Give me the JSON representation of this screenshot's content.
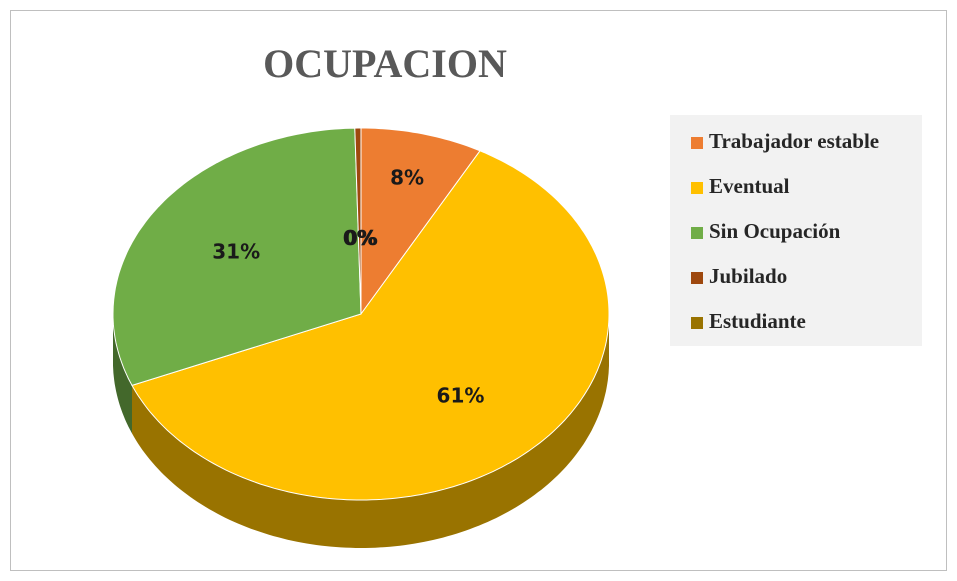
{
  "chart_data": {
    "type": "pie3d",
    "title": "OCUPACION",
    "categories": [
      "Trabajador estable",
      "Eventual",
      "Sin Ocupación",
      "Jubilado",
      "Estudiante"
    ],
    "values": [
      8,
      61,
      31,
      0.4,
      0
    ],
    "value_labels": [
      "8%",
      "61%",
      "31%",
      "0%",
      "0%"
    ],
    "colors": [
      "#ed7d31",
      "#ffc000",
      "#70ad47",
      "#9e480e",
      "#997300"
    ],
    "legend": "right"
  }
}
